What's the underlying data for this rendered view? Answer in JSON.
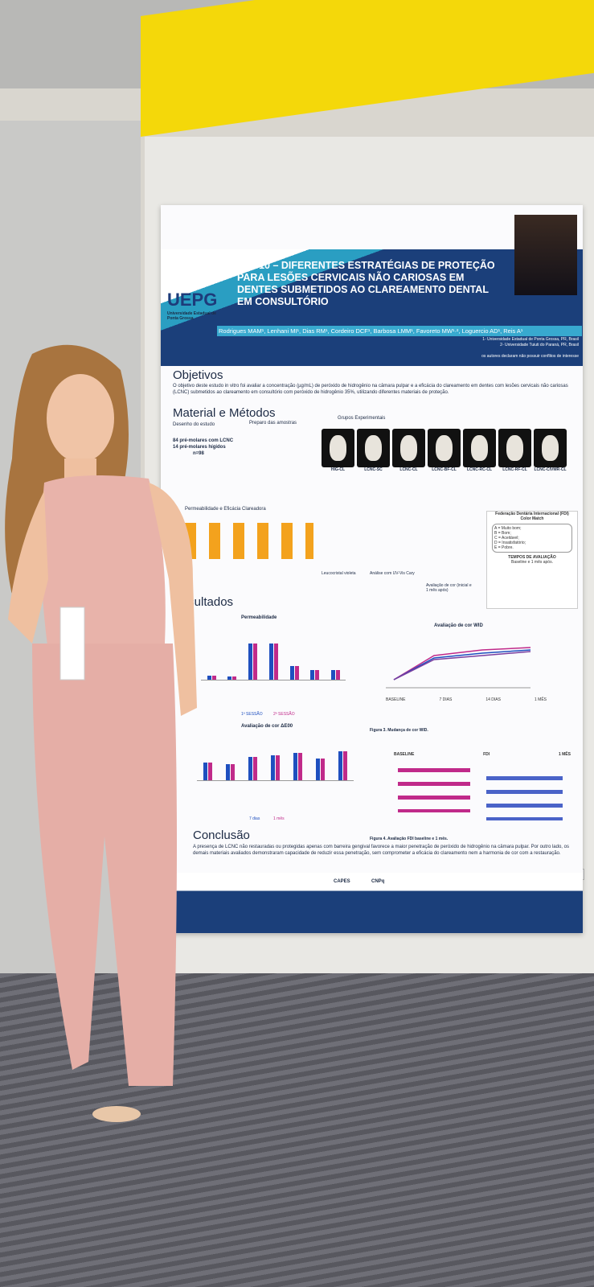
{
  "poster": {
    "logo": "UEPG",
    "university": "Universidade Estadual de Ponta Grossa",
    "title": "PW010 – DIFERENTES ESTRATÉGIAS DE PROTEÇÃO PARA LESÕES CERVICAIS NÃO CARIOSAS EM DENTES SUBMETIDOS AO CLAREAMENTO DENTAL EM CONSULTÓRIO",
    "authors": "Rodrigues MAM¹, Lenhani MI¹, Dias RM¹, Cordeiro DCF¹, Barbosa LMM¹, Favoreto MW¹·², Loguercio AD¹, Reis A¹",
    "affiliations": [
      "1- Universidade Estadual de Ponta Grossa, PR, Brasil",
      "2- Universidade Tuiuti do Paraná, PR, Brasil"
    ],
    "disclaimer": "os autores declaram não possuir conflitos de interesse",
    "objectives": {
      "heading": "Objetivos",
      "text": "O objetivo deste estudo in vitro foi avaliar a concentração (µg/mL) de peróxido de hidrogênio na câmara pulpar e a eficácia do clareamento em dentes com lesões cervicais não cariosas (LCNC) submetidos ao clareamento em consultório com peróxido de hidrogênio 35%, utilizando diferentes materiais de proteção."
    },
    "methods": {
      "heading": "Material e Métodos",
      "steps": [
        "Desenho do estudo",
        "Preparo das amostras",
        "Grupos Experimentais",
        "Permeabilidade e Eficácia Clareadora"
      ],
      "sample": [
        "84 pré-molares com LCNC",
        "14 pré-molares hígidos",
        "n=98"
      ],
      "groups": [
        "HIG-CL",
        "LCNC-SC",
        "LCNC-CL",
        "LCNC-BF-CL",
        "LCNC-RC-CL",
        "LCNC-RF-CL",
        "LCNC-CIVMR-CL"
      ],
      "analysis": [
        "Leucocristal violeta",
        "Análise com UV-Vis Cary",
        "Avaliação de cor (inicial e 1 mês após)"
      ]
    },
    "fdi": {
      "title": "Federação Dentária Internacional (FDI)",
      "subtitle": "Color Match",
      "scale": [
        "A = Muito bom;",
        "B = Bom;",
        "C = Aceitável;",
        "D = Insatisfatório;",
        "E = Pobre."
      ],
      "times_heading": "TEMPOS DE AVALIAÇÃO",
      "times": "Baseline e 1 mês após."
    },
    "results": {
      "heading": "Resultados",
      "chart1_title": "Permeabilidade",
      "chart1_legend": [
        "1ª SESSÃO",
        "2ª SESSÃO"
      ],
      "chart2_title": "Avaliação de cor ΔE00",
      "chart2_legend": [
        "7 dias",
        "1 mês"
      ],
      "chart3_title": "Avaliação de cor WID",
      "chart3_times": [
        "BASELINE",
        "7 DIAS",
        "14 DIAS",
        "1 MÊS"
      ],
      "chart3_caption": "Figura 3. Mudança de cor WID.",
      "chart4_panels": [
        "BASELINE",
        "FDI",
        "1 MÊS"
      ],
      "chart4_caption": "Figura 4. Avaliação FDI baseline e 1 mês."
    },
    "conclusion": {
      "heading": "Conclusão",
      "text": "A presença de LCNC não restauradas ou protegidas apenas com barreira gengival favorece a maior penetração de peróxido de hidrogênio na câmara pulpar. Por outro lado, os demais materiais avaliados demonstraram capacidade de reduzir essa penetração, sem comprometer a eficácia do clareamento nem a harmonia de cor com a restauração."
    },
    "sponsors": [
      "CAPES",
      "CNPq"
    ]
  }
}
